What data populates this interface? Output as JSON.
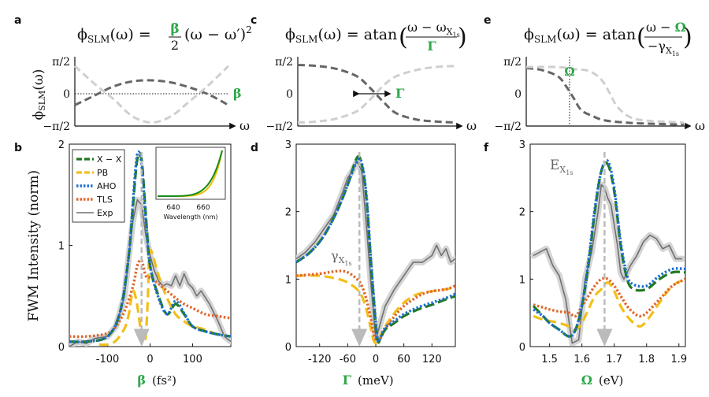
{
  "figure": {
    "panel_labels": [
      "a",
      "c",
      "e",
      "b",
      "d",
      "f"
    ]
  },
  "colors": {
    "xx": "#1f7a1f",
    "pb": "#f2bf1a",
    "aho": "#1f6fd0",
    "tls": "#e0662a",
    "exp": "#707070",
    "exp_halo": "#d4d4d4",
    "dark_dash": "#666666",
    "light_dash": "#cfcfcf",
    "arrow": "#bbbbbb",
    "accent": "#2ea84a",
    "inset_green": "#1a8a1a",
    "inset_yellow": "#e8c000"
  },
  "chart_data": [
    {
      "panel": "a",
      "type": "line",
      "title_parts": [
        "ϕ",
        "SLM",
        "(ω) = ",
        "β",
        "/",
        "2",
        "(ω − ω′)",
        "2"
      ],
      "ylabel": "ϕSLM(ω)",
      "xlabel": "ω",
      "yticks": [
        "π/2",
        "0",
        "−π/2"
      ],
      "param_label": "β",
      "ylim": [
        -1.5708,
        1.5708
      ],
      "series": [
        {
          "style": "dark",
          "x": [
            -1,
            -0.75,
            -0.5,
            -0.25,
            0,
            0.25,
            0.5,
            0.75,
            1
          ],
          "y": [
            -0.55,
            -0.1,
            0.35,
            0.6,
            0.65,
            0.55,
            0.3,
            -0.05,
            -0.55
          ]
        },
        {
          "style": "light",
          "x": [
            -1,
            -0.75,
            -0.5,
            -0.25,
            0,
            0.25,
            0.5,
            0.75,
            1
          ],
          "y": [
            1.35,
            0.5,
            -0.25,
            -1.1,
            -1.4,
            -1.1,
            -0.35,
            0.45,
            1.35
          ]
        }
      ]
    },
    {
      "panel": "c",
      "type": "line",
      "title_parts": [
        "ϕ",
        "SLM",
        "(ω) = atan",
        "ω − ω",
        "X",
        "1s",
        "Γ"
      ],
      "ylabel": "",
      "xlabel": "ω",
      "yticks": [
        "π/2",
        "0",
        "−π/2"
      ],
      "param_label": "Γ",
      "ylim": [
        -1.5708,
        1.5708
      ],
      "series": [
        {
          "style": "dark",
          "x": [
            -1,
            -0.75,
            -0.5,
            -0.25,
            -0.1,
            0,
            0.1,
            0.25,
            0.5,
            0.75,
            1
          ],
          "y": [
            1.4,
            1.35,
            1.2,
            0.85,
            0.35,
            -0.05,
            -0.45,
            -0.95,
            -1.25,
            -1.35,
            -1.4
          ]
        },
        {
          "style": "light",
          "x": [
            -1,
            -0.75,
            -0.5,
            -0.25,
            -0.1,
            0,
            0.1,
            0.25,
            0.5,
            0.75,
            1
          ],
          "y": [
            -1.4,
            -1.35,
            -1.2,
            -0.85,
            -0.35,
            0.05,
            0.45,
            0.85,
            1.15,
            1.3,
            1.35
          ]
        }
      ]
    },
    {
      "panel": "e",
      "type": "line",
      "title_parts": [
        "ϕ",
        "SLM",
        "(ω) = atan",
        "ω − ",
        "Ω",
        "−γ",
        "X",
        "1s"
      ],
      "ylabel": "",
      "xlabel": "ω",
      "yticks": [
        "π/2",
        "0",
        "−π/2"
      ],
      "param_label": "Ω",
      "ylim": [
        -1.5708,
        1.5708
      ],
      "series": [
        {
          "style": "dark",
          "x": [
            -1,
            -0.8,
            -0.6,
            -0.5,
            -0.4,
            -0.3,
            -0.15,
            0,
            0.25,
            0.5,
            1
          ],
          "y": [
            1.25,
            1.15,
            0.85,
            0.4,
            -0.2,
            -0.8,
            -1.1,
            -1.3,
            -1.4,
            -1.45,
            -1.5
          ]
        },
        {
          "style": "light",
          "x": [
            -1,
            -0.6,
            -0.4,
            -0.2,
            -0.05,
            0.05,
            0.15,
            0.3,
            0.5,
            1
          ],
          "y": [
            1.3,
            1.3,
            1.2,
            1.1,
            0.7,
            0.1,
            -0.6,
            -1.1,
            -1.3,
            -1.4
          ]
        }
      ]
    },
    {
      "panel": "b",
      "type": "line",
      "xlabel": "β",
      "xunit": "(fs²)",
      "ylabel": "FWM Intensity (norm)",
      "xlim": [
        -190,
        190
      ],
      "ylim": [
        0,
        2
      ],
      "xticks": [
        -100,
        0,
        100
      ],
      "yticks": [
        0,
        1,
        2
      ],
      "legend": {
        "location": "top-left",
        "entries": [
          "X − X",
          "PB",
          "AHO",
          "TLS",
          "Exp"
        ]
      },
      "arrow_x": -20,
      "series": [
        {
          "name": "X − X",
          "x": [
            -190,
            -150,
            -100,
            -70,
            -50,
            -40,
            -30,
            -20,
            -10,
            0,
            20,
            40,
            60,
            80,
            100,
            130,
            160,
            190
          ],
          "y": [
            0.05,
            0.05,
            0.1,
            0.35,
            0.9,
            1.4,
            1.85,
            1.85,
            1.3,
            0.8,
            0.5,
            0.32,
            0.42,
            0.32,
            0.2,
            0.15,
            0.12,
            0.1
          ]
        },
        {
          "name": "PB",
          "x": [
            -120,
            -100,
            -80,
            -60,
            -50,
            -40,
            -30,
            -20,
            -15,
            -10,
            -5,
            0,
            20,
            40,
            60,
            80,
            100,
            120,
            140,
            160,
            190
          ],
          "y": [
            0.02,
            0.02,
            0.06,
            0.18,
            0.32,
            0.55,
            0.4,
            0.1,
            0.05,
            0.1,
            0.5,
            0.95,
            0.7,
            0.48,
            0.32,
            0.25,
            0.2,
            0.18,
            0.15,
            0.12,
            0.1
          ]
        },
        {
          "name": "AHO",
          "x": [
            -190,
            -150,
            -100,
            -70,
            -50,
            -40,
            -30,
            -20,
            -10,
            0,
            20,
            40,
            60,
            80,
            100,
            130,
            160,
            190
          ],
          "y": [
            0.05,
            0.05,
            0.1,
            0.35,
            0.9,
            1.45,
            1.9,
            1.8,
            1.25,
            0.8,
            0.48,
            0.32,
            0.45,
            0.33,
            0.2,
            0.15,
            0.12,
            0.1
          ]
        },
        {
          "name": "TLS",
          "x": [
            -190,
            -150,
            -100,
            -80,
            -60,
            -40,
            -30,
            -20,
            -10,
            0,
            20,
            40,
            60,
            80,
            100,
            130,
            160,
            190
          ],
          "y": [
            0.1,
            0.1,
            0.13,
            0.2,
            0.35,
            0.6,
            0.8,
            0.85,
            0.7,
            0.68,
            0.62,
            0.55,
            0.48,
            0.42,
            0.38,
            0.32,
            0.3,
            0.28
          ]
        },
        {
          "name": "Exp",
          "x": [
            -190,
            -170,
            -150,
            -130,
            -100,
            -80,
            -60,
            -50,
            -40,
            -30,
            -20,
            -10,
            0,
            10,
            20,
            30,
            40,
            50,
            60,
            70,
            80,
            90,
            100,
            110,
            120,
            140,
            160,
            175,
            190
          ],
          "y": [
            0,
            0.05,
            0.03,
            0.08,
            0.1,
            0.2,
            0.5,
            0.9,
            1.25,
            1.45,
            1.4,
            1.1,
            0.9,
            0.75,
            0.65,
            0.6,
            0.62,
            0.6,
            0.7,
            0.6,
            0.72,
            0.62,
            0.58,
            0.5,
            0.55,
            0.42,
            0.25,
            0.1,
            0.05
          ]
        }
      ],
      "inset": {
        "xtick_labels": [
          "640",
          "660"
        ],
        "xlabel": "Wavelength (nm)"
      }
    },
    {
      "panel": "d",
      "type": "line",
      "xlabel": "Γ",
      "xunit": "(meV)",
      "ylabel": "",
      "xlim": [
        -170,
        170
      ],
      "ylim": [
        0,
        3
      ],
      "xticks": [
        -120,
        -60,
        0,
        60,
        120
      ],
      "yticks": [
        0,
        1,
        2,
        3
      ],
      "annotation": "γX1s",
      "arrow_x": -35,
      "series": [
        {
          "name": "X − X",
          "x": [
            -170,
            -140,
            -110,
            -80,
            -60,
            -40,
            -30,
            -20,
            -10,
            0,
            5,
            10,
            20,
            40,
            60,
            90,
            120,
            150,
            170
          ],
          "y": [
            1.25,
            1.4,
            1.65,
            2.05,
            2.4,
            2.8,
            2.7,
            2.2,
            1.2,
            0.3,
            0.07,
            0.12,
            0.25,
            0.35,
            0.45,
            0.55,
            0.62,
            0.7,
            0.75
          ]
        },
        {
          "name": "PB",
          "x": [
            -170,
            -120,
            -80,
            -60,
            -40,
            -30,
            -20,
            -10,
            -5,
            0,
            5,
            10,
            20,
            40,
            60,
            80,
            100,
            120,
            150,
            170
          ],
          "y": [
            1.05,
            1.05,
            1.0,
            0.95,
            0.85,
            0.75,
            0.55,
            0.25,
            0.1,
            0.05,
            0.07,
            0.15,
            0.3,
            0.5,
            0.65,
            0.75,
            0.8,
            0.82,
            0.85,
            0.88
          ]
        },
        {
          "name": "AHO",
          "x": [
            -170,
            -140,
            -110,
            -80,
            -60,
            -40,
            -30,
            -20,
            -10,
            0,
            5,
            10,
            20,
            40,
            60,
            90,
            120,
            150,
            170
          ],
          "y": [
            1.25,
            1.4,
            1.65,
            2.05,
            2.4,
            2.75,
            2.72,
            2.25,
            1.25,
            0.35,
            0.08,
            0.13,
            0.28,
            0.38,
            0.48,
            0.58,
            0.65,
            0.72,
            0.78
          ]
        },
        {
          "name": "TLS",
          "x": [
            -170,
            -120,
            -80,
            -60,
            -40,
            -30,
            -20,
            -10,
            -5,
            0,
            5,
            10,
            20,
            40,
            60,
            80,
            100,
            120,
            150,
            170
          ],
          "y": [
            1.05,
            1.08,
            1.12,
            1.1,
            1.0,
            0.9,
            0.7,
            0.4,
            0.2,
            0.1,
            0.08,
            0.12,
            0.25,
            0.45,
            0.6,
            0.7,
            0.78,
            0.82,
            0.85,
            0.9
          ]
        },
        {
          "name": "Exp",
          "x": [
            -170,
            -150,
            -130,
            -110,
            -90,
            -70,
            -60,
            -50,
            -40,
            -30,
            -20,
            -10,
            0,
            10,
            20,
            40,
            60,
            80,
            100,
            120,
            130,
            140,
            150,
            160,
            170
          ],
          "y": [
            1.3,
            1.4,
            1.55,
            1.75,
            1.95,
            2.3,
            2.5,
            2.6,
            2.75,
            2.6,
            1.8,
            0.9,
            0.1,
            0.35,
            0.6,
            0.85,
            1.05,
            1.25,
            1.25,
            1.35,
            1.5,
            1.35,
            1.45,
            1.25,
            1.3
          ]
        }
      ]
    },
    {
      "panel": "f",
      "type": "line",
      "xlabel": "Ω",
      "xunit": "(eV)",
      "ylabel": "",
      "xlim": [
        1.44,
        1.92
      ],
      "ylim": [
        0,
        3
      ],
      "xticks": [
        1.5,
        1.6,
        1.7,
        1.8,
        1.9
      ],
      "yticks": [
        0,
        1,
        2,
        3
      ],
      "annotation": "EX1s",
      "arrow_x": 1.67,
      "series": [
        {
          "name": "X − X",
          "x": [
            1.45,
            1.48,
            1.5,
            1.53,
            1.56,
            1.58,
            1.6,
            1.62,
            1.64,
            1.66,
            1.68,
            1.7,
            1.72,
            1.74,
            1.76,
            1.8,
            1.84,
            1.88,
            1.92
          ],
          "y": [
            0.6,
            0.45,
            0.35,
            0.25,
            0.15,
            0.25,
            0.6,
            1.2,
            2.0,
            2.6,
            2.7,
            2.3,
            1.5,
            1.0,
            0.85,
            0.85,
            1.0,
            1.1,
            1.1
          ]
        },
        {
          "name": "PB",
          "x": [
            1.45,
            1.48,
            1.5,
            1.53,
            1.56,
            1.58,
            1.6,
            1.62,
            1.64,
            1.66,
            1.68,
            1.7,
            1.72,
            1.74,
            1.76,
            1.78,
            1.8,
            1.84,
            1.88,
            1.92
          ],
          "y": [
            0.45,
            0.4,
            0.38,
            0.35,
            0.3,
            0.25,
            0.35,
            0.55,
            0.75,
            0.85,
            0.95,
            0.82,
            0.6,
            0.45,
            0.35,
            0.3,
            0.38,
            0.65,
            0.9,
            1.0
          ]
        },
        {
          "name": "AHO",
          "x": [
            1.45,
            1.48,
            1.5,
            1.53,
            1.56,
            1.58,
            1.6,
            1.62,
            1.64,
            1.66,
            1.68,
            1.7,
            1.72,
            1.74,
            1.76,
            1.8,
            1.84,
            1.88,
            1.92
          ],
          "y": [
            0.55,
            0.45,
            0.35,
            0.25,
            0.15,
            0.25,
            0.62,
            1.25,
            2.05,
            2.6,
            2.75,
            2.35,
            1.55,
            1.05,
            0.92,
            0.9,
            1.05,
            1.15,
            1.15
          ]
        },
        {
          "name": "TLS",
          "x": [
            1.45,
            1.48,
            1.5,
            1.53,
            1.56,
            1.58,
            1.6,
            1.62,
            1.64,
            1.66,
            1.68,
            1.7,
            1.72,
            1.74,
            1.76,
            1.78,
            1.8,
            1.84,
            1.88,
            1.92
          ],
          "y": [
            0.62,
            0.58,
            0.55,
            0.52,
            0.5,
            0.45,
            0.6,
            0.75,
            0.9,
            1.0,
            1.0,
            0.9,
            0.75,
            0.6,
            0.5,
            0.45,
            0.5,
            0.7,
            0.9,
            1.0
          ]
        },
        {
          "name": "Exp",
          "x": [
            1.45,
            1.47,
            1.49,
            1.51,
            1.53,
            1.55,
            1.57,
            1.59,
            1.61,
            1.63,
            1.65,
            1.66,
            1.67,
            1.68,
            1.69,
            1.7,
            1.71,
            1.72,
            1.73,
            1.75,
            1.77,
            1.79,
            1.81,
            1.83,
            1.85,
            1.87,
            1.89,
            1.91
          ],
          "y": [
            1.35,
            1.4,
            1.45,
            1.2,
            1.05,
            0.7,
            0.05,
            0.1,
            1.0,
            1.4,
            2.0,
            2.4,
            2.35,
            2.2,
            2.1,
            1.8,
            1.5,
            1.1,
            1.0,
            1.2,
            1.35,
            1.55,
            1.65,
            1.6,
            1.45,
            1.5,
            1.3,
            1.3
          ]
        }
      ]
    }
  ]
}
